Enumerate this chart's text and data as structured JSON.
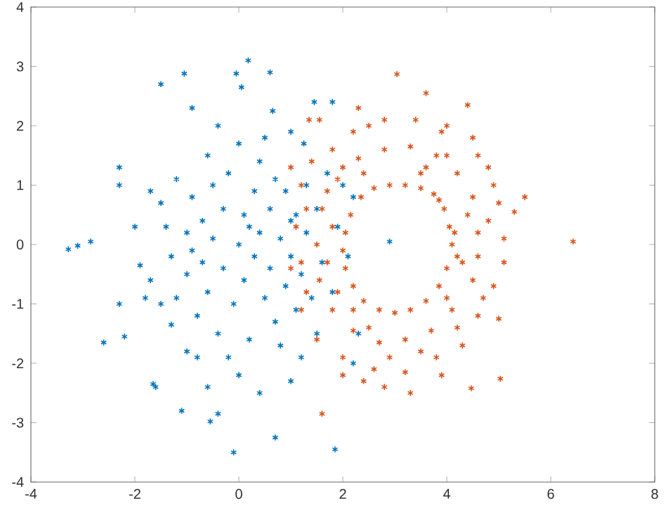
{
  "chart_data": {
    "type": "scatter",
    "marker": "cross",
    "xlim": [
      -4,
      8
    ],
    "ylim": [
      -4,
      4
    ],
    "xticks": [
      -4,
      -2,
      0,
      2,
      4,
      6,
      8
    ],
    "yticks": [
      -4,
      -3,
      -2,
      -1,
      0,
      1,
      2,
      3,
      4
    ],
    "series": [
      {
        "color": "#0072bd",
        "x": [
          -3.28,
          -3.1,
          -2.85,
          -2.6,
          -2.3,
          -2.2,
          -2.3,
          -2.3,
          -1.7,
          -1.5,
          -1.05,
          -0.05,
          0.18,
          0.6,
          0.05,
          -0.9,
          0.65,
          1.25,
          1.8,
          1.45,
          -1.6,
          -1.65,
          -1.3,
          -1.1,
          -0.55,
          -0.4,
          -0.1,
          0.7,
          1.85,
          1.0,
          0.4,
          0.0,
          -0.6,
          -1.0,
          -0.8,
          -2.0,
          -1.9,
          -1.7,
          -1.5,
          -1.4,
          -1.3,
          -1.2,
          -1.2,
          -1.0,
          -1.0,
          -0.9,
          -0.8,
          -0.7,
          -0.7,
          -0.6,
          -0.6,
          -0.5,
          -0.4,
          -0.4,
          -0.3,
          -0.3,
          -0.2,
          -0.1,
          0.0,
          0.0,
          0.1,
          0.1,
          0.2,
          0.3,
          0.3,
          0.4,
          0.4,
          0.5,
          0.6,
          0.6,
          0.7,
          0.7,
          0.8,
          0.9,
          0.9,
          1.0,
          1.0,
          1.1,
          1.1,
          1.2,
          1.3,
          1.3,
          1.4,
          1.5,
          1.5,
          1.6,
          1.7,
          1.8,
          1.9,
          2.0,
          2.1,
          2.2,
          2.3,
          2.9,
          2.2,
          1.2,
          0.8,
          -0.2,
          -1.5,
          -0.9,
          0.2,
          -0.5,
          1.0,
          0.5,
          -1.8
        ],
        "values": [
          -0.08,
          -0.02,
          0.05,
          -1.65,
          -1.0,
          -1.55,
          1.3,
          1.0,
          0.9,
          2.7,
          2.88,
          2.88,
          3.1,
          2.9,
          2.65,
          2.3,
          2.25,
          1.7,
          2.4,
          2.4,
          -2.4,
          -2.35,
          -1.35,
          -2.8,
          -2.98,
          -2.85,
          -3.5,
          -3.25,
          -3.45,
          -2.3,
          -2.5,
          -2.2,
          -2.4,
          -1.8,
          -1.9,
          0.3,
          -0.35,
          -0.6,
          0.7,
          0.3,
          -0.2,
          -0.9,
          1.1,
          0.2,
          -0.5,
          0.8,
          -1.2,
          0.4,
          -0.3,
          1.5,
          -0.8,
          0.1,
          2.0,
          -1.5,
          0.6,
          -0.4,
          1.2,
          -1.0,
          0.0,
          1.7,
          0.5,
          -0.6,
          -1.6,
          0.9,
          -0.2,
          1.4,
          0.2,
          -0.9,
          0.6,
          -0.4,
          1.1,
          -1.3,
          0.1,
          -0.7,
          0.9,
          1.9,
          -0.2,
          0.5,
          -1.1,
          -0.5,
          1.0,
          0.2,
          -0.9,
          0.6,
          -1.5,
          -0.3,
          1.2,
          -0.8,
          0.3,
          1.0,
          -0.2,
          0.8,
          -1.5,
          0.05,
          -2.0,
          -1.9,
          -1.7,
          -1.9,
          -1.0,
          -0.1,
          0.3,
          1.0,
          0.4,
          1.8,
          -0.9
        ]
      },
      {
        "color": "#d95319",
        "x": [
          6.43,
          3.04,
          3.6,
          4.4,
          1.6,
          5.03,
          4.47,
          5.5,
          5.3,
          5.0,
          4.6,
          1.35,
          1.55,
          4.1,
          4.05,
          3.95,
          3.75,
          3.5,
          3.2,
          2.9,
          2.6,
          2.35,
          2.15,
          2.05,
          2.0,
          2.05,
          2.2,
          2.4,
          2.7,
          3.0,
          3.3,
          3.6,
          3.85,
          4.0,
          4.15,
          4.2,
          3.85,
          4.6,
          4.5,
          4.2,
          3.8,
          3.3,
          2.8,
          2.3,
          1.9,
          1.6,
          1.5,
          1.55,
          1.8,
          2.2,
          2.7,
          3.2,
          3.7,
          4.1,
          4.5,
          4.6,
          5.1,
          5.0,
          4.8,
          4.5,
          4.0,
          3.4,
          2.8,
          2.2,
          1.8,
          1.2,
          1.1,
          1.0,
          1.2,
          1.5,
          2.0,
          2.6,
          3.2,
          3.8,
          4.3,
          4.9,
          5.1,
          1.2,
          1.3,
          1.7,
          1.8,
          2.5,
          2.9,
          3.5,
          4.2,
          4.4,
          4.3,
          4.0,
          3.6,
          2.4,
          2.0,
          1.7,
          4.8,
          4.7,
          2.4,
          2.8,
          3.3,
          3.9,
          2.3,
          2.5,
          3.9,
          4.6,
          4.9,
          1.4,
          2.0,
          1.9,
          2.2,
          3.5,
          4.0,
          1.3,
          1.0
        ],
        "values": [
          0.05,
          2.87,
          2.55,
          2.35,
          -2.85,
          -2.26,
          -2.42,
          0.8,
          0.55,
          -1.25,
          -1.2,
          2.1,
          2.1,
          0.0,
          0.3,
          0.6,
          0.85,
          0.95,
          1.0,
          1.0,
          0.95,
          0.8,
          0.5,
          0.2,
          -0.1,
          -0.4,
          -0.7,
          -0.95,
          -1.1,
          -1.15,
          -1.1,
          -0.95,
          -0.7,
          -0.4,
          0.2,
          -0.2,
          0.75,
          0.2,
          0.8,
          1.2,
          1.5,
          1.65,
          1.6,
          1.45,
          1.1,
          0.6,
          0.0,
          -0.6,
          -1.1,
          -1.45,
          -1.65,
          -1.6,
          -1.45,
          -1.1,
          -0.6,
          -0.2,
          0.1,
          0.7,
          1.3,
          1.8,
          2.0,
          2.1,
          2.1,
          1.9,
          1.6,
          1.0,
          0.3,
          -0.4,
          -1.1,
          -1.6,
          -1.9,
          -2.1,
          -2.15,
          -1.9,
          -1.7,
          -0.7,
          -0.3,
          -0.3,
          0.6,
          -0.3,
          0.3,
          -1.4,
          -1.9,
          -1.8,
          -1.4,
          0.5,
          -0.3,
          1.5,
          1.3,
          1.2,
          1.3,
          0.9,
          0.4,
          -0.9,
          -2.3,
          -2.4,
          -2.5,
          -2.2,
          2.3,
          2.0,
          1.9,
          1.5,
          1.0,
          1.4,
          -2.2,
          -0.8,
          -1.1,
          1.2,
          -0.9,
          -0.8,
          1.3
        ]
      }
    ]
  }
}
